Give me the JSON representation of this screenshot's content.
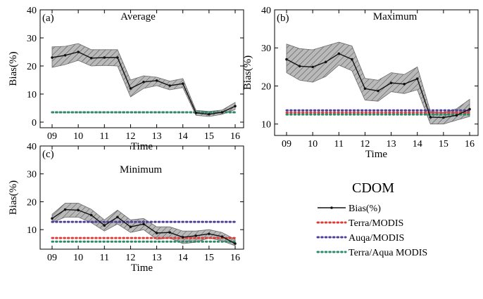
{
  "colors": {
    "bias": "#111111",
    "band_fill": "#b9b9b9",
    "band_hatch": "#4a4a4a",
    "terra_modis": "#e03a3a",
    "aqua_modis": "#4a3f9a",
    "terra_aqua_modis": "#2e8b6a"
  },
  "legend": {
    "title": "CDOM",
    "items": [
      {
        "label": "Bias(%)",
        "style": "line-marker",
        "color_key": "bias"
      },
      {
        "label": "Terra/MODIS",
        "style": "dotted",
        "color_key": "terra_modis"
      },
      {
        "label": "Auqa/MODIS",
        "style": "dotted",
        "color_key": "aqua_modis"
      },
      {
        "label": "Terra/Aqua MODIS",
        "style": "dotted",
        "color_key": "terra_aqua_modis"
      }
    ]
  },
  "chart_data": [
    {
      "type": "line",
      "panel": "(a)",
      "title": "Average",
      "xlabel": "Time",
      "ylabel": "Bias(%)",
      "x_ticks": [
        "09",
        "10",
        "11",
        "12",
        "13",
        "14",
        "15",
        "16"
      ],
      "xlim": [
        9,
        16
      ],
      "ylim": [
        -2,
        40
      ],
      "y_ticks": [
        0,
        10,
        20,
        30,
        40
      ],
      "x": [
        9,
        9.5,
        10,
        10.5,
        11,
        11.5,
        12,
        12.5,
        13,
        13.5,
        14,
        14.5,
        15,
        15.5,
        16
      ],
      "bias": [
        23,
        23.8,
        25,
        22.8,
        23,
        23,
        12,
        14.3,
        14.8,
        13,
        13.7,
        3.3,
        2.8,
        3.5,
        5.7
      ],
      "band_upper": [
        26.8,
        27,
        28,
        25.8,
        25.8,
        25.8,
        15,
        16.5,
        16,
        14.6,
        15.5,
        4.2,
        3.8,
        4.3,
        7
      ],
      "band_lower": [
        19.5,
        20.5,
        22,
        20,
        20.2,
        20,
        9,
        12,
        13,
        11.5,
        12.3,
        2.4,
        2,
        2.8,
        4.5
      ],
      "series": [
        {
          "name": "Terra/MODIS",
          "color_key": "terra_modis",
          "value": 3.5
        },
        {
          "name": "Auqa/MODIS",
          "color_key": "aqua_modis",
          "value": 3.5
        },
        {
          "name": "Terra/Aqua MODIS",
          "color_key": "terra_aqua_modis",
          "value": 3.5
        }
      ]
    },
    {
      "type": "line",
      "panel": "(b)",
      "title": "Maximum",
      "xlabel": "Time",
      "ylabel": "Bias(%)",
      "x_ticks": [
        "09",
        "10",
        "11",
        "12",
        "13",
        "14",
        "15",
        "16"
      ],
      "xlim": [
        9,
        16
      ],
      "ylim": [
        7,
        40
      ],
      "y_ticks": [
        10,
        20,
        30,
        40
      ],
      "x": [
        9,
        9.5,
        10,
        10.5,
        11,
        11.5,
        12,
        12.5,
        13,
        13.5,
        14,
        14.5,
        15,
        15.5,
        16
      ],
      "bias": [
        27,
        25.2,
        25,
        26.3,
        28.5,
        27,
        19.3,
        18.7,
        20.8,
        20.5,
        21.9,
        11.8,
        11.7,
        12.3,
        13.9
      ],
      "band_upper": [
        31,
        29.8,
        29.5,
        30.5,
        31.5,
        30.5,
        22,
        21.5,
        23.5,
        23,
        25,
        13.3,
        13,
        14,
        16.5
      ],
      "band_lower": [
        23.5,
        21.5,
        21,
        22.5,
        25.5,
        24,
        16.3,
        16,
        18.5,
        18,
        19,
        10,
        10,
        11,
        12
      ],
      "series": [
        {
          "name": "Terra/MODIS",
          "color_key": "terra_modis",
          "value": 13
        },
        {
          "name": "Auqa/MODIS",
          "color_key": "aqua_modis",
          "value": 13.6
        },
        {
          "name": "Terra/Aqua MODIS",
          "color_key": "terra_aqua_modis",
          "value": 12.5
        }
      ]
    },
    {
      "type": "line",
      "panel": "(c)",
      "title": "Minimum",
      "xlabel": "Time",
      "ylabel": "Bias(%)",
      "x_ticks": [
        "09",
        "10",
        "11",
        "12",
        "13",
        "14",
        "15",
        "16"
      ],
      "xlim": [
        9,
        16
      ],
      "ylim": [
        3,
        40
      ],
      "y_ticks": [
        10,
        20,
        30,
        40
      ],
      "x": [
        9,
        9.5,
        10,
        10.5,
        11,
        11.5,
        12,
        12.5,
        13,
        13.5,
        14,
        14.5,
        15,
        15.5,
        16
      ],
      "bias": [
        14,
        17.2,
        17,
        15.2,
        11.5,
        14.5,
        11,
        12,
        8.8,
        9,
        7.3,
        7.8,
        8.5,
        7.5,
        5
      ],
      "band_upper": [
        15.5,
        19.5,
        19.5,
        17.3,
        13.5,
        17,
        13.5,
        14,
        11,
        11,
        9.5,
        9.5,
        10,
        9,
        6.5
      ],
      "band_lower": [
        12.5,
        14.5,
        14.5,
        12.5,
        9.5,
        12,
        9,
        10,
        6.5,
        7,
        5,
        5.5,
        7,
        6,
        4.2
      ],
      "series": [
        {
          "name": "Terra/MODIS",
          "color_key": "terra_modis",
          "value": 7
        },
        {
          "name": "Auqa/MODIS",
          "color_key": "aqua_modis",
          "value": 12.8
        },
        {
          "name": "Terra/Aqua MODIS",
          "color_key": "terra_aqua_modis",
          "value": 5.7
        }
      ]
    }
  ]
}
